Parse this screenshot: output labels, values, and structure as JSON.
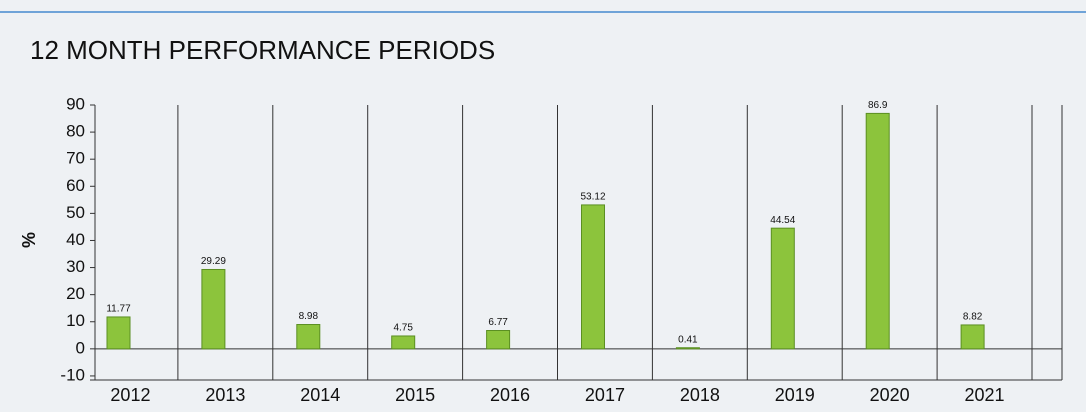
{
  "chart_data": {
    "type": "bar",
    "title": "12 MONTH PERFORMANCE PERIODS",
    "y_label": "%",
    "categories": [
      "2012",
      "2013",
      "2014",
      "2015",
      "2016",
      "2017",
      "2018",
      "2019",
      "2020",
      "2021"
    ],
    "values": [
      11.77,
      29.29,
      8.98,
      4.75,
      6.77,
      53.12,
      0.41,
      44.54,
      86.9,
      8.82
    ],
    "color": "#8cc43c",
    "ylim": [
      -11.5,
      90
    ],
    "yticks": [
      -10,
      0,
      10,
      20,
      30,
      40,
      50,
      60,
      70,
      80,
      90
    ]
  }
}
